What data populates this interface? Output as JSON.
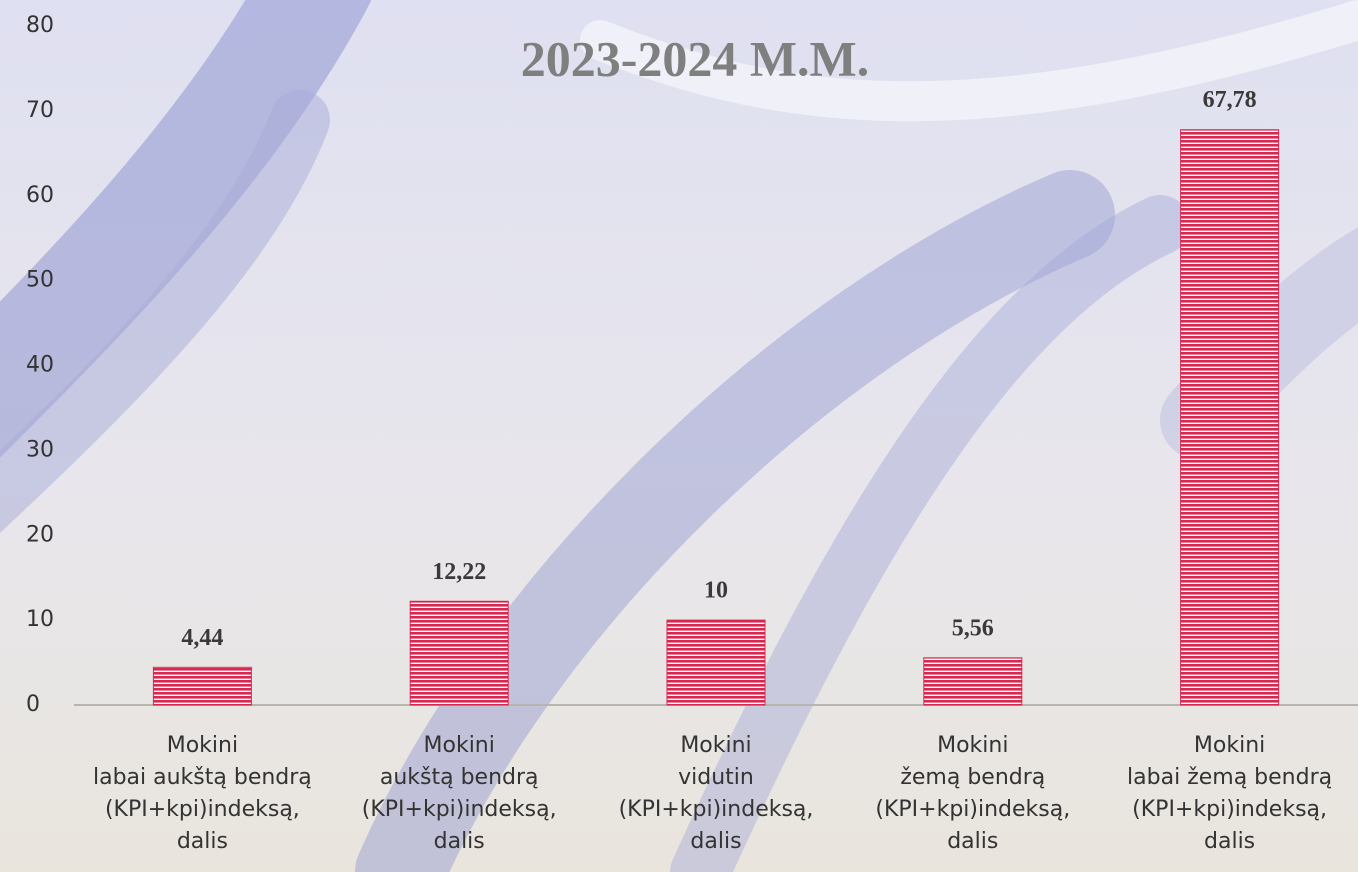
{
  "chart_data": {
    "type": "bar",
    "title": "2023-2024 M.M.",
    "categories": [
      "Mokini\nlabai aukštą bendrą\n(KPI+kpi)indeksą,\ndalis",
      "Mokini\naukštą bendrą\n(KPI+kpi)indeksą,\ndalis",
      "Mokini\nvidutin\n(KPI+kpi)indeksą,\ndalis",
      "Mokini\nžemą bendrą\n(KPI+kpi)indeksą,\ndalis",
      "Mokini\nlabai žemą bendrą\n(KPI+kpi)indeksą,\ndalis"
    ],
    "values": [
      4.44,
      12.22,
      10,
      5.56,
      67.78
    ],
    "value_labels": [
      "4,44",
      "12,22",
      "10",
      "5,56",
      "67,78"
    ],
    "color": "#d6294f",
    "ylim": [
      0,
      80
    ],
    "yticks": [
      0,
      10,
      20,
      30,
      40,
      50,
      60,
      70,
      80
    ],
    "grid": false
  }
}
